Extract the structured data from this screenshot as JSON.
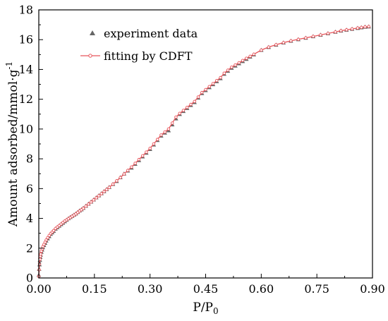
{
  "chart_data": {
    "type": "scatter",
    "xlabel": "P/P",
    "xlabel_sub": "0",
    "ylabel": "Amount adsorbed/mmol·g",
    "ylabel_sup": "-1",
    "xlim": [
      0,
      0.9
    ],
    "ylim": [
      0,
      18
    ],
    "x_ticks": [
      "0.00",
      "0.15",
      "0.30",
      "0.45",
      "0.60",
      "0.75",
      "0.90"
    ],
    "y_ticks": [
      "0",
      "2",
      "4",
      "6",
      "8",
      "10",
      "12",
      "14",
      "16",
      "18"
    ],
    "grid": false,
    "legend_position": "top-left",
    "series": [
      {
        "name": "experiment data",
        "style": "triangle-markers",
        "color": "#666666",
        "x": [
          0.0,
          0.001,
          0.002,
          0.003,
          0.004,
          0.005,
          0.007,
          0.009,
          0.011,
          0.014,
          0.017,
          0.02,
          0.024,
          0.028,
          0.032,
          0.036,
          0.04,
          0.045,
          0.05,
          0.055,
          0.06,
          0.065,
          0.07,
          0.075,
          0.08,
          0.085,
          0.09,
          0.095,
          0.1,
          0.105,
          0.11,
          0.115,
          0.12,
          0.127,
          0.134,
          0.141,
          0.148,
          0.155,
          0.162,
          0.169,
          0.176,
          0.183,
          0.19,
          0.2,
          0.21,
          0.22,
          0.23,
          0.24,
          0.25,
          0.26,
          0.27,
          0.28,
          0.29,
          0.3,
          0.31,
          0.32,
          0.33,
          0.34,
          0.35,
          0.36,
          0.37,
          0.38,
          0.39,
          0.4,
          0.41,
          0.42,
          0.43,
          0.44,
          0.45,
          0.46,
          0.47,
          0.48,
          0.49,
          0.5,
          0.51,
          0.52,
          0.53,
          0.54,
          0.55,
          0.56,
          0.57,
          0.58,
          0.6,
          0.62,
          0.64,
          0.66,
          0.68,
          0.7,
          0.72,
          0.74,
          0.76,
          0.78,
          0.8,
          0.815,
          0.83,
          0.845,
          0.86,
          0.87,
          0.88,
          0.89
        ],
        "y": [
          0.2,
          0.6,
          0.9,
          1.2,
          1.4,
          1.55,
          1.75,
          1.9,
          2.05,
          2.2,
          2.35,
          2.5,
          2.65,
          2.8,
          2.95,
          3.05,
          3.15,
          3.3,
          3.4,
          3.5,
          3.6,
          3.7,
          3.8,
          3.9,
          4.0,
          4.08,
          4.16,
          4.24,
          4.32,
          4.42,
          4.52,
          4.6,
          4.7,
          4.84,
          4.98,
          5.12,
          5.26,
          5.4,
          5.54,
          5.68,
          5.82,
          5.96,
          6.1,
          6.3,
          6.5,
          6.75,
          7.0,
          7.2,
          7.4,
          7.65,
          7.9,
          8.15,
          8.4,
          8.65,
          8.95,
          9.25,
          9.55,
          9.75,
          9.9,
          10.3,
          10.7,
          11.0,
          11.2,
          11.4,
          11.6,
          11.8,
          12.1,
          12.4,
          12.6,
          12.8,
          13.0,
          13.2,
          13.4,
          13.7,
          13.9,
          14.1,
          14.25,
          14.4,
          14.55,
          14.7,
          14.85,
          15.0,
          15.3,
          15.5,
          15.65,
          15.8,
          15.92,
          16.02,
          16.12,
          16.22,
          16.32,
          16.42,
          16.52,
          16.6,
          16.66,
          16.72,
          16.78,
          16.82,
          16.86,
          16.88
        ]
      },
      {
        "name": "fitting by CDFT",
        "style": "line-with-open-circles",
        "color": "#e8545a",
        "x": [
          0.0,
          0.001,
          0.002,
          0.003,
          0.004,
          0.005,
          0.007,
          0.009,
          0.011,
          0.014,
          0.017,
          0.02,
          0.024,
          0.028,
          0.032,
          0.036,
          0.04,
          0.045,
          0.05,
          0.055,
          0.06,
          0.065,
          0.07,
          0.075,
          0.08,
          0.085,
          0.09,
          0.095,
          0.1,
          0.105,
          0.11,
          0.115,
          0.12,
          0.127,
          0.134,
          0.141,
          0.148,
          0.155,
          0.162,
          0.169,
          0.176,
          0.183,
          0.19,
          0.2,
          0.21,
          0.22,
          0.23,
          0.24,
          0.25,
          0.26,
          0.27,
          0.28,
          0.29,
          0.3,
          0.31,
          0.32,
          0.33,
          0.34,
          0.35,
          0.36,
          0.37,
          0.38,
          0.39,
          0.4,
          0.41,
          0.42,
          0.43,
          0.44,
          0.45,
          0.46,
          0.47,
          0.48,
          0.49,
          0.5,
          0.51,
          0.52,
          0.53,
          0.54,
          0.55,
          0.56,
          0.57,
          0.58,
          0.6,
          0.62,
          0.64,
          0.66,
          0.68,
          0.7,
          0.72,
          0.74,
          0.76,
          0.78,
          0.8,
          0.815,
          0.83,
          0.845,
          0.86,
          0.87,
          0.88,
          0.89
        ],
        "y": [
          0.1,
          0.55,
          0.95,
          1.25,
          1.45,
          1.6,
          1.8,
          1.95,
          2.1,
          2.25,
          2.4,
          2.55,
          2.7,
          2.85,
          2.98,
          3.08,
          3.18,
          3.32,
          3.42,
          3.52,
          3.62,
          3.72,
          3.82,
          3.9,
          3.98,
          4.06,
          4.14,
          4.22,
          4.3,
          4.4,
          4.5,
          4.58,
          4.68,
          4.82,
          4.96,
          5.1,
          5.24,
          5.38,
          5.52,
          5.66,
          5.8,
          5.94,
          6.08,
          6.3,
          6.52,
          6.74,
          6.98,
          7.22,
          7.45,
          7.7,
          7.95,
          8.2,
          8.45,
          8.7,
          9.0,
          9.3,
          9.6,
          9.8,
          10.0,
          10.4,
          10.8,
          11.05,
          11.25,
          11.45,
          11.65,
          11.85,
          12.15,
          12.45,
          12.65,
          12.85,
          13.05,
          13.25,
          13.45,
          13.75,
          13.95,
          14.15,
          14.3,
          14.45,
          14.6,
          14.75,
          14.88,
          15.02,
          15.3,
          15.5,
          15.66,
          15.8,
          15.92,
          16.02,
          16.12,
          16.22,
          16.32,
          16.42,
          16.52,
          16.6,
          16.66,
          16.72,
          16.78,
          16.82,
          16.86,
          16.88
        ]
      }
    ]
  }
}
